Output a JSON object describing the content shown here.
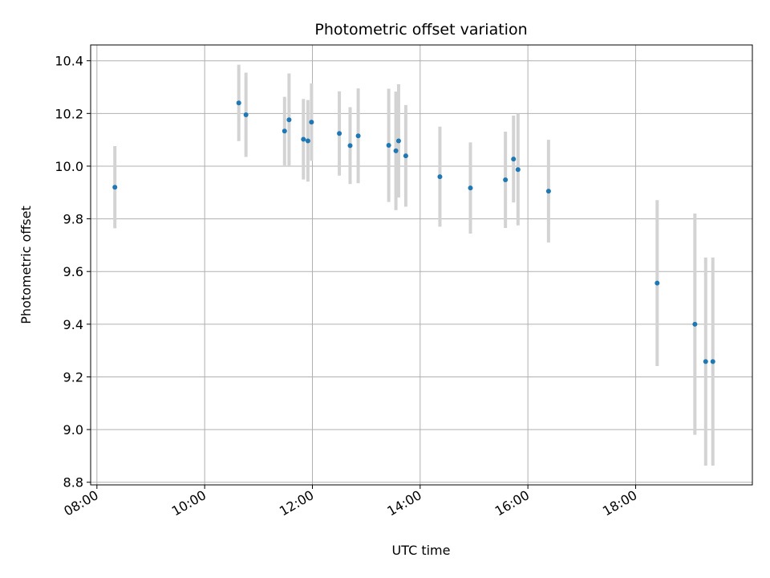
{
  "chart_data": {
    "type": "scatter",
    "title": "Photometric offset variation",
    "xlabel": "UTC time",
    "ylabel": "Photometric offset",
    "x_type": "time",
    "xlim": [
      "07:53",
      "20:10"
    ],
    "ylim": [
      8.79,
      10.46
    ],
    "x_ticks": [
      "08:00",
      "10:00",
      "12:00",
      "14:00",
      "16:00",
      "18:00"
    ],
    "y_ticks": [
      8.8,
      9.0,
      9.2,
      9.4,
      9.6,
      9.8,
      10.0,
      10.2,
      10.4
    ],
    "y_tick_labels": [
      "8.8",
      "9.0",
      "9.2",
      "9.4",
      "9.6",
      "9.8",
      "10.0",
      "10.2",
      "10.4"
    ],
    "grid": true,
    "colors": {
      "point": "#1f77b4",
      "errorbar": "#d3d3d3",
      "grid": "#b0b0b0"
    },
    "points": [
      {
        "x": "08:20",
        "y": 9.92,
        "err": 0.156
      },
      {
        "x": "10:38",
        "y": 10.24,
        "err": 0.145
      },
      {
        "x": "10:46",
        "y": 10.195,
        "err": 0.16
      },
      {
        "x": "11:29",
        "y": 10.133,
        "err": 0.13
      },
      {
        "x": "11:34",
        "y": 10.176,
        "err": 0.176
      },
      {
        "x": "11:50",
        "y": 10.102,
        "err": 0.153
      },
      {
        "x": "11:55",
        "y": 10.096,
        "err": 0.155
      },
      {
        "x": "11:59",
        "y": 10.167,
        "err": 0.147
      },
      {
        "x": "12:30",
        "y": 10.124,
        "err": 0.16
      },
      {
        "x": "12:42",
        "y": 10.078,
        "err": 0.146
      },
      {
        "x": "12:51",
        "y": 10.115,
        "err": 0.18
      },
      {
        "x": "13:25",
        "y": 10.079,
        "err": 0.215
      },
      {
        "x": "13:33",
        "y": 10.058,
        "err": 0.225
      },
      {
        "x": "13:36",
        "y": 10.096,
        "err": 0.215
      },
      {
        "x": "13:44",
        "y": 10.039,
        "err": 0.193
      },
      {
        "x": "14:22",
        "y": 9.96,
        "err": 0.19
      },
      {
        "x": "14:56",
        "y": 9.917,
        "err": 0.173
      },
      {
        "x": "15:35",
        "y": 9.948,
        "err": 0.183
      },
      {
        "x": "15:44",
        "y": 10.027,
        "err": 0.165
      },
      {
        "x": "15:49",
        "y": 9.987,
        "err": 0.212
      },
      {
        "x": "16:23",
        "y": 9.905,
        "err": 0.195
      },
      {
        "x": "18:24",
        "y": 9.556,
        "err": 0.315
      },
      {
        "x": "19:06",
        "y": 9.4,
        "err": 0.42
      },
      {
        "x": "19:18",
        "y": 9.258,
        "err": 0.395
      },
      {
        "x": "19:26",
        "y": 9.258,
        "err": 0.395
      }
    ]
  }
}
